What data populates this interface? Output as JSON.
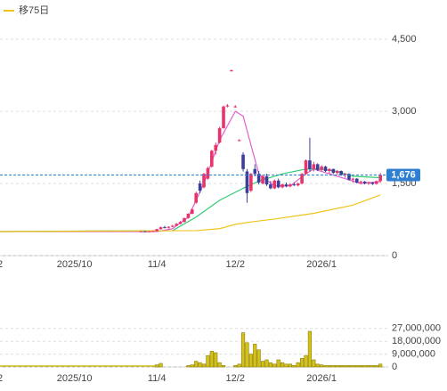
{
  "chart_data": [
    {
      "type": "candlestick",
      "xlim": [
        0,
        99
      ],
      "xticks": [
        {
          "value": 0,
          "label": "2"
        },
        {
          "value": 19,
          "label": "2025/10"
        },
        {
          "value": 40,
          "label": "11/4"
        },
        {
          "value": 60,
          "label": "12/2"
        },
        {
          "value": 82,
          "label": "2026/1"
        }
      ],
      "ylim": [
        0,
        5000
      ],
      "yticks": [
        0,
        {
          "value": 1500,
          "label": "1,500"
        },
        {
          "value": 3000,
          "label": "3,000"
        },
        {
          "value": 4500,
          "label": "4,500"
        }
      ],
      "grid": true,
      "up_color": "#e8336b",
      "down_color": "#3b3f9c",
      "last_price": {
        "value": 1676,
        "label": "1,676",
        "color": "#2f7fd0"
      },
      "x": [
        36,
        37,
        38,
        39,
        40,
        41,
        42,
        43,
        44,
        45,
        46,
        47,
        48,
        49,
        50,
        51,
        52,
        53,
        54,
        55,
        56,
        57,
        58,
        59,
        60,
        61,
        62,
        63,
        64,
        65,
        66,
        67,
        68,
        69,
        70,
        71,
        72,
        73,
        74,
        75,
        76,
        77,
        78,
        79,
        80,
        81,
        82,
        83,
        84,
        85,
        86,
        87,
        88,
        89,
        90,
        91,
        92,
        93,
        94,
        95,
        96,
        97
      ],
      "open": [
        500,
        505,
        500,
        505,
        510,
        550,
        590,
        580,
        600,
        620,
        660,
        700,
        780,
        870,
        1100,
        1500,
        1420,
        1600,
        1850,
        2180,
        2350,
        2650,
        3100,
        3850,
        3100,
        2400,
        2100,
        1750,
        1350,
        1800,
        1700,
        1500,
        1650,
        1480,
        1400,
        1560,
        1420,
        1480,
        1440,
        1480,
        1460,
        1500,
        1700,
        1980,
        1800,
        1900,
        1780,
        1850,
        1760,
        1800,
        1720,
        1760,
        1680,
        1700,
        1580,
        1600,
        1520,
        1540,
        1500,
        1520,
        1490,
        1550
      ],
      "high": [
        510,
        510,
        510,
        515,
        560,
        600,
        620,
        610,
        640,
        680,
        720,
        790,
        880,
        980,
        1330,
        1560,
        1720,
        1850,
        2200,
        2350,
        2680,
        3120,
        3150,
        3870,
        3130,
        2420,
        2150,
        1800,
        1720,
        1900,
        1760,
        1680,
        1700,
        1550,
        1580,
        1600,
        1500,
        1520,
        1500,
        1520,
        1520,
        1720,
        2000,
        2450,
        1950,
        1920,
        1880,
        1870,
        1820,
        1810,
        1780,
        1770,
        1720,
        1710,
        1620,
        1610,
        1560,
        1550,
        1540,
        1530,
        1560,
        1720
      ],
      "low": [
        495,
        495,
        495,
        500,
        505,
        540,
        570,
        560,
        590,
        610,
        650,
        690,
        770,
        860,
        1080,
        1300,
        1400,
        1580,
        1830,
        2100,
        2330,
        2640,
        3080,
        3830,
        3080,
        2380,
        1750,
        1100,
        1320,
        1650,
        1480,
        1480,
        1450,
        1380,
        1380,
        1400,
        1400,
        1420,
        1420,
        1450,
        1440,
        1480,
        1680,
        1750,
        1750,
        1760,
        1760,
        1740,
        1700,
        1700,
        1680,
        1660,
        1620,
        1560,
        1520,
        1500,
        1480,
        1480,
        1470,
        1470,
        1480,
        1520
      ],
      "close": [
        505,
        500,
        505,
        510,
        550,
        590,
        580,
        600,
        620,
        660,
        700,
        780,
        870,
        960,
        1300,
        1350,
        1700,
        1820,
        2180,
        2300,
        2650,
        3100,
        3120,
        3850,
        3100,
        2400,
        1800,
        1300,
        1700,
        1700,
        1520,
        1650,
        1480,
        1400,
        1560,
        1420,
        1480,
        1440,
        1480,
        1460,
        1500,
        1700,
        1980,
        1800,
        1900,
        1780,
        1850,
        1760,
        1800,
        1720,
        1760,
        1680,
        1700,
        1580,
        1600,
        1520,
        1540,
        1500,
        1520,
        1490,
        1550,
        1676
      ],
      "series": [
        {
          "color": "#e060d0",
          "x": [
            0,
            40,
            44,
            48,
            52,
            56,
            60,
            62,
            64,
            66,
            70,
            74,
            78,
            80,
            84,
            88,
            92,
            97
          ],
          "values": [
            500,
            500,
            560,
            800,
            1500,
            2400,
            3000,
            2900,
            2300,
            1700,
            1450,
            1450,
            1700,
            1800,
            1700,
            1600,
            1500,
            1540
          ]
        },
        {
          "color": "#2ecc71",
          "x": [
            0,
            44,
            50,
            56,
            62,
            66,
            72,
            78,
            82,
            86,
            90,
            97
          ],
          "values": [
            500,
            520,
            800,
            1150,
            1400,
            1550,
            1700,
            1800,
            1800,
            1750,
            1650,
            1620
          ]
        },
        {
          "name": "移75日",
          "color": "#f0c419",
          "x": [
            0,
            50,
            56,
            60,
            64,
            70,
            80,
            90,
            97
          ],
          "values": [
            500,
            520,
            560,
            650,
            700,
            760,
            880,
            1050,
            1260
          ]
        }
      ]
    },
    {
      "type": "bar",
      "xlim": [
        0,
        99
      ],
      "xticks": [
        {
          "value": 0,
          "label": "2"
        },
        {
          "value": 19,
          "label": "2025/10"
        },
        {
          "value": 40,
          "label": "11/4"
        },
        {
          "value": 60,
          "label": "12/2"
        },
        {
          "value": 82,
          "label": "2026/1"
        }
      ],
      "ylim": [
        0,
        30000000
      ],
      "yticks": [
        0,
        {
          "value": 9000000,
          "label": "9,000,000"
        },
        {
          "value": 18000000,
          "label": "18,000,000"
        },
        {
          "value": 27000000,
          "label": "27,000,000"
        }
      ],
      "grid": true,
      "color": "#d4c21a",
      "x": [
        40,
        41,
        48,
        49,
        50,
        51,
        52,
        53,
        54,
        55,
        56,
        57,
        60,
        61,
        62,
        63,
        64,
        65,
        66,
        67,
        68,
        69,
        70,
        71,
        72,
        73,
        74,
        75,
        76,
        77,
        78,
        79,
        80,
        81,
        82,
        83,
        84,
        85,
        86,
        87,
        88,
        89,
        90,
        91,
        92,
        93,
        94,
        95,
        96,
        97
      ],
      "values": [
        1500000,
        2500000,
        1000000,
        1500000,
        4000000,
        3000000,
        2000000,
        8000000,
        11000000,
        10000000,
        3000000,
        1000000,
        1000000,
        2000000,
        24000000,
        17000000,
        9000000,
        16000000,
        12000000,
        4000000,
        5000000,
        3000000,
        2000000,
        5000000,
        3000000,
        2000000,
        2000000,
        1000000,
        3000000,
        6000000,
        8000000,
        25000000,
        5000000,
        2000000,
        1500000,
        1000000,
        1000000,
        1000000,
        1000000,
        1000000,
        1000000,
        1000000,
        1000000,
        1000000,
        1000000,
        1000000,
        1000000,
        1000000,
        1000000,
        2000000
      ]
    }
  ]
}
